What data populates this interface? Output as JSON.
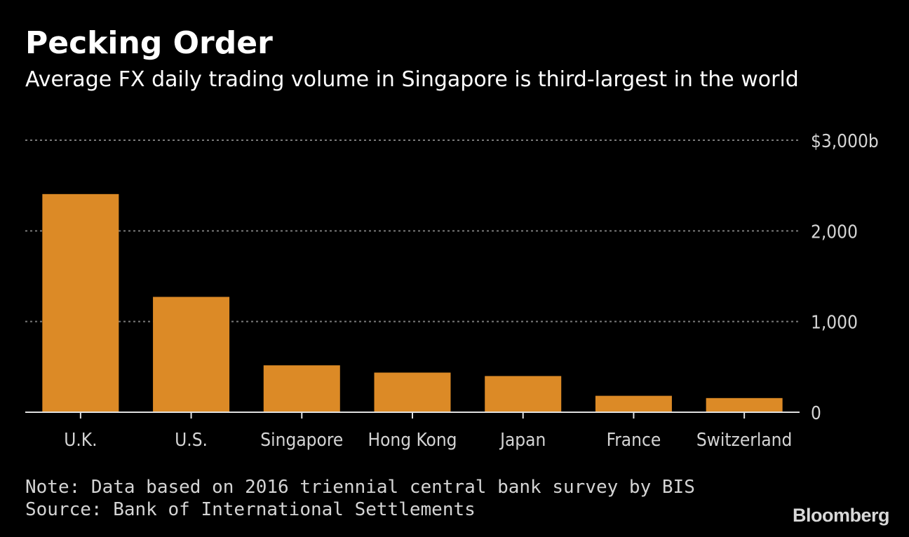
{
  "title": "Pecking Order",
  "subtitle": "Average FX daily trading volume in Singapore is third-largest in the world",
  "note": "Note: Data based on 2016 triennial central bank survey by BIS",
  "source": "Source: Bank of International Settlements",
  "logo": "Bloomberg",
  "colors": {
    "background": "#000000",
    "bar": "#DC8A26",
    "grid": "#7a7a7a",
    "text": "#ffffff",
    "axis_text": "#d4d4d4"
  },
  "chart_data": {
    "type": "bar",
    "title": "Pecking Order",
    "subtitle": "Average FX daily trading volume in Singapore is third-largest in the world",
    "xlabel": "",
    "ylabel": "",
    "categories": [
      "U.K.",
      "U.S.",
      "Singapore",
      "Hong Kong",
      "Japan",
      "France",
      "Switzerland"
    ],
    "values": [
      2406,
      1272,
      517,
      437,
      399,
      181,
      156
    ],
    "ylim": [
      0,
      3000
    ],
    "yticks": [
      0,
      1000,
      2000,
      3000
    ],
    "ytick_labels": [
      "0",
      "1,000",
      "2,000",
      "$3,000b"
    ],
    "grid": true,
    "legend": "none"
  }
}
